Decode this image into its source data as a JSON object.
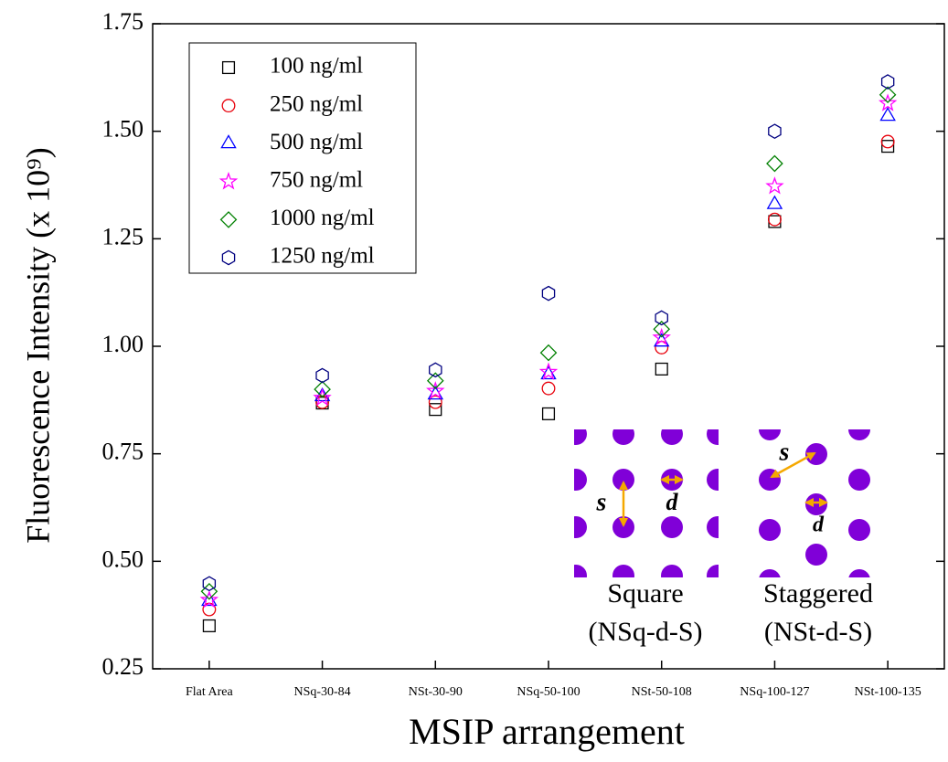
{
  "chart_data": {
    "type": "scatter",
    "x_label": "MSIP arrangement",
    "y_label": "Fluorescence Intensity (x 10⁹)",
    "categories": [
      "Flat Area",
      "NSq-30-84",
      "NSt-30-90",
      "NSq-50-100",
      "NSt-50-108",
      "NSq-100-127",
      "NSt-100-135"
    ],
    "series": [
      {
        "name": "100 ng/ml",
        "color": "#000000",
        "marker": "square",
        "values": [
          0.35,
          0.868,
          0.853,
          0.843,
          0.947,
          1.29,
          1.465
        ]
      },
      {
        "name": "250 ng/ml",
        "color": "#e8000b",
        "marker": "circle",
        "values": [
          0.388,
          0.87,
          0.87,
          0.902,
          0.997,
          1.295,
          1.476
        ]
      },
      {
        "name": "500 ng/ml",
        "color": "#0000ff",
        "marker": "triangle",
        "values": [
          0.407,
          0.883,
          0.887,
          0.934,
          1.01,
          1.33,
          1.535
        ]
      },
      {
        "name": "750 ng/ml",
        "color": "#ff00ff",
        "marker": "star",
        "values": [
          0.41,
          0.88,
          0.896,
          0.94,
          1.02,
          1.372,
          1.565
        ]
      },
      {
        "name": "1000 ng/ml",
        "color": "#008000",
        "marker": "diamond",
        "values": [
          0.43,
          0.9,
          0.92,
          0.985,
          1.04,
          1.425,
          1.585
        ]
      },
      {
        "name": "1250 ng/ml",
        "color": "#000080",
        "marker": "hexagon",
        "values": [
          0.448,
          0.932,
          0.945,
          1.123,
          1.066,
          1.5,
          1.615
        ]
      }
    ],
    "ylim": [
      0.25,
      1.75
    ],
    "yticks": [
      0.25,
      {
        "value": 0.5,
        "label": "0.50"
      },
      0.75,
      {
        "value": 1.0,
        "label": "1.00"
      },
      1.25,
      {
        "value": 1.5,
        "label": "1.50"
      },
      1.75
    ],
    "legend": "upper left",
    "inset": {
      "s": "s",
      "d": "d",
      "square_title": "Square",
      "square_code": "(NSq-d-S)",
      "staggered_title": "Staggered",
      "staggered_code": "(NSt-d-S)"
    }
  }
}
